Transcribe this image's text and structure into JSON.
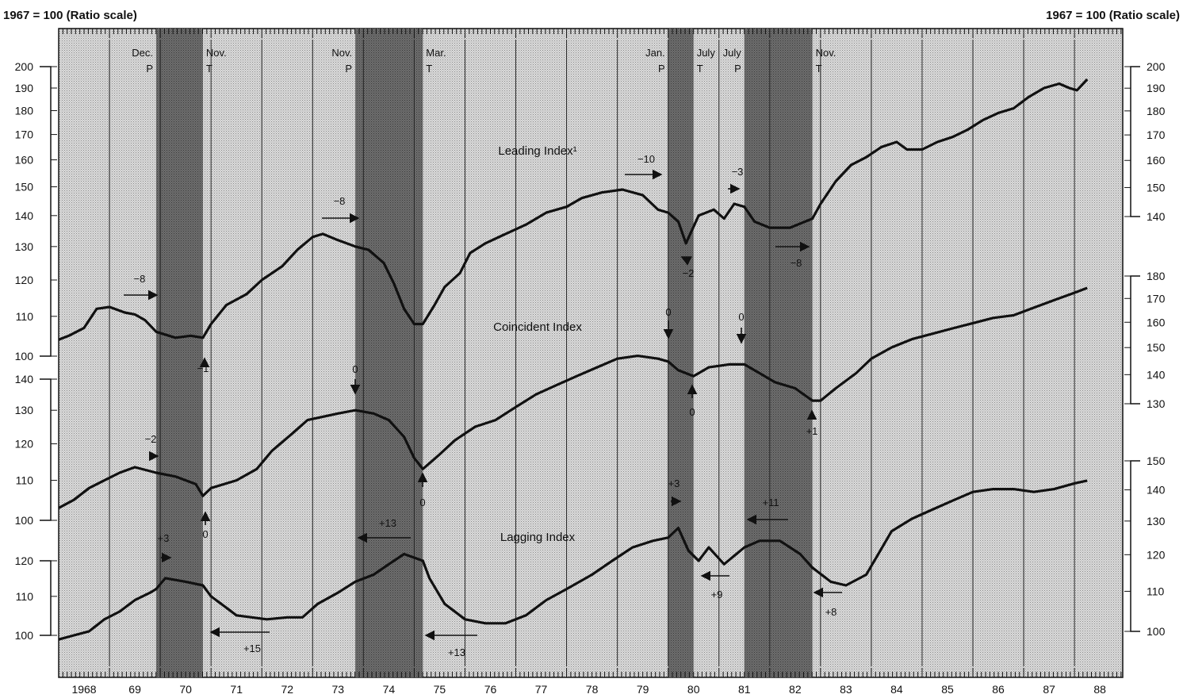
{
  "chart_data": {
    "type": "line",
    "scale_note_left": "1967 = 100 (Ratio scale)",
    "scale_note_right": "1967 = 100 (Ratio scale)",
    "x_range": [
      1968.0,
      1988.95
    ],
    "year_labels": [
      "1968",
      "69",
      "70",
      "71",
      "72",
      "73",
      "74",
      "75",
      "76",
      "77",
      "78",
      "79",
      "80",
      "81",
      "82",
      "83",
      "84",
      "85",
      "86",
      "87",
      "88"
    ],
    "recessions": [
      {
        "start": 1969.92,
        "end": 1970.84
      },
      {
        "start": 1973.84,
        "end": 1975.17
      },
      {
        "start": 1980.0,
        "end": 1980.5
      },
      {
        "start": 1981.5,
        "end": 1982.84
      }
    ],
    "turning_points": [
      {
        "x": 1969.92,
        "month": "Dec.",
        "type": "P"
      },
      {
        "x": 1970.84,
        "month": "Nov.",
        "type": "T"
      },
      {
        "x": 1973.84,
        "month": "Nov.",
        "type": "P"
      },
      {
        "x": 1975.17,
        "month": "Mar.",
        "type": "T"
      },
      {
        "x": 1980.0,
        "month": "Jan.",
        "type": "P"
      },
      {
        "x": 1980.5,
        "month": "July",
        "type": "T"
      },
      {
        "x": 1981.5,
        "month": "July",
        "type": "P"
      },
      {
        "x": 1982.84,
        "month": "Nov.",
        "type": "T"
      }
    ],
    "series": [
      {
        "name": "Leading Index¹",
        "axis_left": {
          "ticks": [
            100,
            110,
            120,
            130,
            140,
            150,
            160,
            170,
            180,
            190,
            200
          ]
        },
        "axis_right": {
          "ticks": [
            140,
            150,
            160,
            170,
            180,
            190,
            200
          ]
        },
        "points": [
          [
            1968.0,
            104
          ],
          [
            1968.2,
            105
          ],
          [
            1968.5,
            107
          ],
          [
            1968.75,
            112
          ],
          [
            1969.0,
            112.5
          ],
          [
            1969.3,
            111
          ],
          [
            1969.5,
            110.5
          ],
          [
            1969.7,
            109
          ],
          [
            1969.92,
            106
          ],
          [
            1970.3,
            104.5
          ],
          [
            1970.6,
            105
          ],
          [
            1970.84,
            104.5
          ],
          [
            1971.0,
            108
          ],
          [
            1971.3,
            113
          ],
          [
            1971.7,
            116
          ],
          [
            1972.0,
            120
          ],
          [
            1972.4,
            124
          ],
          [
            1972.7,
            129
          ],
          [
            1973.0,
            133
          ],
          [
            1973.2,
            134
          ],
          [
            1973.5,
            132
          ],
          [
            1973.84,
            130
          ],
          [
            1974.1,
            129
          ],
          [
            1974.4,
            125
          ],
          [
            1974.6,
            119
          ],
          [
            1974.8,
            112
          ],
          [
            1975.0,
            108
          ],
          [
            1975.17,
            108
          ],
          [
            1975.4,
            113
          ],
          [
            1975.6,
            118
          ],
          [
            1975.9,
            122
          ],
          [
            1976.1,
            128
          ],
          [
            1976.4,
            131
          ],
          [
            1976.8,
            134
          ],
          [
            1977.2,
            137
          ],
          [
            1977.6,
            141
          ],
          [
            1978.0,
            143
          ],
          [
            1978.3,
            146
          ],
          [
            1978.7,
            148
          ],
          [
            1979.1,
            149
          ],
          [
            1979.5,
            147
          ],
          [
            1979.8,
            142
          ],
          [
            1980.0,
            141
          ],
          [
            1980.2,
            138
          ],
          [
            1980.35,
            131
          ],
          [
            1980.6,
            140
          ],
          [
            1980.9,
            142
          ],
          [
            1981.1,
            139
          ],
          [
            1981.3,
            144
          ],
          [
            1981.5,
            143
          ],
          [
            1981.7,
            138
          ],
          [
            1982.0,
            136
          ],
          [
            1982.4,
            136
          ],
          [
            1982.84,
            139
          ],
          [
            1983.0,
            144
          ],
          [
            1983.3,
            152
          ],
          [
            1983.6,
            158
          ],
          [
            1983.9,
            161
          ],
          [
            1984.2,
            165
          ],
          [
            1984.5,
            167
          ],
          [
            1984.7,
            164
          ],
          [
            1985.0,
            164
          ],
          [
            1985.3,
            167
          ],
          [
            1985.6,
            169
          ],
          [
            1985.9,
            172
          ],
          [
            1986.2,
            176
          ],
          [
            1986.5,
            179
          ],
          [
            1986.8,
            181
          ],
          [
            1987.1,
            186
          ],
          [
            1987.4,
            190
          ],
          [
            1987.7,
            192
          ],
          [
            1987.9,
            190
          ],
          [
            1988.05,
            189
          ],
          [
            1988.25,
            194
          ]
        ]
      },
      {
        "name": "Coincident Index",
        "axis_left": {
          "ticks": [
            100,
            110,
            120,
            130,
            140
          ]
        },
        "axis_right": {
          "ticks": [
            130,
            140,
            150,
            160,
            170,
            180
          ]
        },
        "points": [
          [
            1968.0,
            103
          ],
          [
            1968.3,
            105
          ],
          [
            1968.6,
            108
          ],
          [
            1968.9,
            110
          ],
          [
            1969.2,
            112
          ],
          [
            1969.5,
            113.5
          ],
          [
            1969.92,
            112
          ],
          [
            1970.3,
            111
          ],
          [
            1970.7,
            109
          ],
          [
            1970.84,
            106
          ],
          [
            1971.0,
            108
          ],
          [
            1971.5,
            110
          ],
          [
            1971.9,
            113
          ],
          [
            1972.2,
            118
          ],
          [
            1972.6,
            123
          ],
          [
            1972.9,
            127
          ],
          [
            1973.2,
            128
          ],
          [
            1973.5,
            129
          ],
          [
            1973.84,
            130
          ],
          [
            1974.2,
            129
          ],
          [
            1974.5,
            127
          ],
          [
            1974.8,
            122
          ],
          [
            1975.0,
            116
          ],
          [
            1975.17,
            113
          ],
          [
            1975.5,
            117
          ],
          [
            1975.8,
            121
          ],
          [
            1976.2,
            125
          ],
          [
            1976.6,
            127
          ],
          [
            1977.0,
            131
          ],
          [
            1977.4,
            135
          ],
          [
            1977.8,
            138
          ],
          [
            1978.2,
            141
          ],
          [
            1978.6,
            144
          ],
          [
            1979.0,
            147
          ],
          [
            1979.4,
            148
          ],
          [
            1979.8,
            147
          ],
          [
            1980.0,
            146
          ],
          [
            1980.2,
            143
          ],
          [
            1980.5,
            141
          ],
          [
            1980.8,
            144
          ],
          [
            1981.2,
            145
          ],
          [
            1981.5,
            145
          ],
          [
            1981.8,
            142
          ],
          [
            1982.1,
            139
          ],
          [
            1982.5,
            137
          ],
          [
            1982.84,
            133
          ],
          [
            1983.0,
            133
          ],
          [
            1983.3,
            137
          ],
          [
            1983.7,
            142
          ],
          [
            1984.0,
            147
          ],
          [
            1984.4,
            151
          ],
          [
            1984.8,
            154
          ],
          [
            1985.2,
            156
          ],
          [
            1985.6,
            158
          ],
          [
            1986.0,
            160
          ],
          [
            1986.4,
            162
          ],
          [
            1986.8,
            163
          ],
          [
            1987.2,
            166
          ],
          [
            1987.6,
            169
          ],
          [
            1988.0,
            172
          ],
          [
            1988.25,
            174
          ]
        ]
      },
      {
        "name": "Lagging Index",
        "axis_left": {
          "ticks": [
            100,
            110,
            120
          ]
        },
        "axis_right": {
          "ticks": [
            100,
            110,
            120,
            130,
            140,
            150
          ]
        },
        "points": [
          [
            1968.0,
            99
          ],
          [
            1968.3,
            100
          ],
          [
            1968.6,
            101
          ],
          [
            1968.9,
            104
          ],
          [
            1969.2,
            106
          ],
          [
            1969.5,
            109
          ],
          [
            1969.8,
            111
          ],
          [
            1969.92,
            112
          ],
          [
            1970.1,
            115
          ],
          [
            1970.5,
            114
          ],
          [
            1970.84,
            113
          ],
          [
            1971.0,
            110
          ],
          [
            1971.3,
            107
          ],
          [
            1971.5,
            105
          ],
          [
            1971.8,
            104.5
          ],
          [
            1972.1,
            104
          ],
          [
            1972.5,
            104.5
          ],
          [
            1972.8,
            104.5
          ],
          [
            1973.1,
            108
          ],
          [
            1973.5,
            111
          ],
          [
            1973.84,
            114
          ],
          [
            1974.2,
            116
          ],
          [
            1974.5,
            119
          ],
          [
            1974.8,
            122
          ],
          [
            1975.17,
            120
          ],
          [
            1975.3,
            115
          ],
          [
            1975.6,
            108
          ],
          [
            1976.0,
            104
          ],
          [
            1976.4,
            103
          ],
          [
            1976.8,
            103
          ],
          [
            1977.2,
            105
          ],
          [
            1977.6,
            109
          ],
          [
            1978.0,
            112
          ],
          [
            1978.5,
            116
          ],
          [
            1978.9,
            120
          ],
          [
            1979.3,
            124
          ],
          [
            1979.7,
            126
          ],
          [
            1980.0,
            127
          ],
          [
            1980.2,
            130
          ],
          [
            1980.4,
            123
          ],
          [
            1980.6,
            120
          ],
          [
            1980.8,
            124
          ],
          [
            1981.1,
            119
          ],
          [
            1981.5,
            124
          ],
          [
            1981.8,
            126
          ],
          [
            1982.2,
            126
          ],
          [
            1982.6,
            122
          ],
          [
            1982.84,
            118
          ],
          [
            1983.2,
            114
          ],
          [
            1983.5,
            113
          ],
          [
            1983.9,
            116
          ],
          [
            1984.1,
            121
          ],
          [
            1984.4,
            129
          ],
          [
            1984.8,
            133
          ],
          [
            1985.2,
            136
          ],
          [
            1985.6,
            139
          ],
          [
            1986.0,
            142
          ],
          [
            1986.4,
            143
          ],
          [
            1986.8,
            143
          ],
          [
            1987.2,
            142
          ],
          [
            1987.6,
            143
          ],
          [
            1988.0,
            145
          ],
          [
            1988.25,
            146
          ]
        ]
      }
    ],
    "lead_annotations": [
      {
        "text": "−8",
        "series": 0
      },
      {
        "text": "−1",
        "series": 0
      },
      {
        "text": "−8",
        "series": 0
      },
      {
        "text": "−10",
        "series": 0
      },
      {
        "text": "−2",
        "series": 0
      },
      {
        "text": "−3",
        "series": 0
      },
      {
        "text": "−8",
        "series": 0
      },
      {
        "text": "−2",
        "series": 1
      },
      {
        "text": "0",
        "series": 1
      },
      {
        "text": "0",
        "series": 1
      },
      {
        "text": "0",
        "series": 1
      },
      {
        "text": "0",
        "series": 1
      },
      {
        "text": "0",
        "series": 1
      },
      {
        "text": "0",
        "series": 1
      },
      {
        "text": "+1",
        "series": 1
      },
      {
        "text": "+3",
        "series": 2
      },
      {
        "text": "+15",
        "series": 2
      },
      {
        "text": "+13",
        "series": 2
      },
      {
        "text": "+13",
        "series": 2
      },
      {
        "text": "+3",
        "series": 2
      },
      {
        "text": "+9",
        "series": 2
      },
      {
        "text": "+11",
        "series": 2
      },
      {
        "text": "+8",
        "series": 2
      }
    ]
  }
}
